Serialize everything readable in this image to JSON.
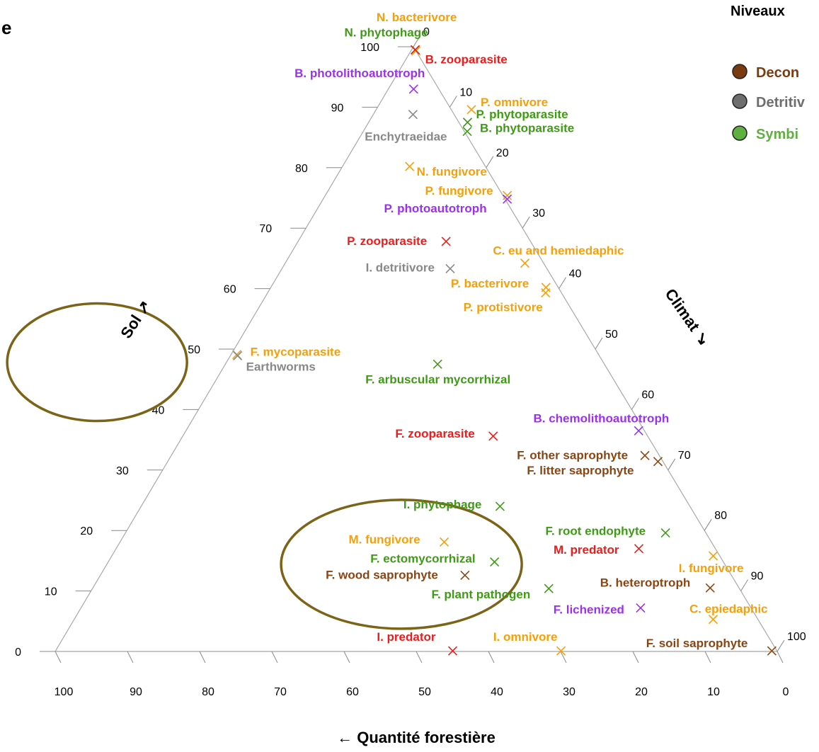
{
  "page_fragment": "e",
  "legend": {
    "title": "Niveaux",
    "items": [
      {
        "label": "Decon",
        "color": "#7a3b10"
      },
      {
        "label": "Detritiv",
        "color": "#6e6e6e"
      },
      {
        "label": "Symbi",
        "color": "#5fb040"
      }
    ]
  },
  "chart_data": {
    "type": "scatter",
    "subtype": "ternary",
    "axes": {
      "bottom": {
        "title": "← Quantité forestière",
        "ticks": [
          "100",
          "90",
          "80",
          "70",
          "60",
          "50",
          "40",
          "30",
          "20",
          "10",
          "0"
        ]
      },
      "left": {
        "title": "Sol ↗",
        "ticks": [
          "0",
          "10",
          "20",
          "30",
          "40",
          "50",
          "60",
          "70",
          "80",
          "90",
          "100"
        ]
      },
      "right": {
        "title": "Climat ↘",
        "ticks": [
          "0",
          "10",
          "20",
          "30",
          "40",
          "50",
          "60",
          "70",
          "80",
          "90",
          "100"
        ]
      }
    },
    "colors": {
      "orange": "#f5a00a",
      "green": "#3f9a16",
      "red": "#ee1c1c",
      "purple": "#9b30f0",
      "grey": "#888888",
      "brown": "#8b4513"
    },
    "points": [
      {
        "label": "N. bacterivore",
        "sol": 99.3,
        "climat": 0.7,
        "color": "orange",
        "la": "middle",
        "ld": [
          1,
          -48
        ]
      },
      {
        "label": "N. phytophage",
        "sol": 99.5,
        "climat": 0.5,
        "color": "green",
        "la": "end",
        "ld": [
          18,
          -25
        ]
      },
      {
        "label": "B. zooparasite",
        "sol": 99.5,
        "climat": 0.5,
        "color": "red",
        "la": "start",
        "ld": [
          14,
          13
        ]
      },
      {
        "label": "B. photolithoautotroph",
        "sol": 93,
        "climat": 3.5,
        "color": "purple",
        "la": "end",
        "ld": [
          16,
          -23
        ]
      },
      {
        "label": "Enchytraeidae",
        "sol": 88.8,
        "climat": 5.5,
        "color": "grey",
        "la": "middle",
        "ld": [
          -10,
          31
        ]
      },
      {
        "label": "P. omnivore",
        "sol": 89.6,
        "climat": 13.2,
        "color": "orange",
        "la": "start",
        "ld": [
          13,
          -11
        ]
      },
      {
        "label": "P. phytoparasite",
        "sol": 87.5,
        "climat": 13.7,
        "color": "green",
        "la": "start",
        "ld": [
          12,
          -12
        ]
      },
      {
        "label": "B. phytoparasite",
        "sol": 86.0,
        "climat": 14.4,
        "color": "green",
        "la": "start",
        "ld": [
          18,
          -5
        ]
      },
      {
        "label": "N. fungivore",
        "sol": 80.2,
        "climat": 9.3,
        "color": "orange",
        "la": "start",
        "ld": [
          10,
          7
        ]
      },
      {
        "label": "P. fungivore",
        "sol": 75.4,
        "climat": 25.2,
        "color": "orange",
        "la": "end",
        "ld": [
          -20,
          -7
        ]
      },
      {
        "label": "P. photoautotroph",
        "sol": 74.8,
        "climat": 25.5,
        "color": "purple",
        "la": "end",
        "ld": [
          -29,
          13
        ]
      },
      {
        "label": "P. zooparasite",
        "sol": 67.8,
        "climat": 20.5,
        "color": "red",
        "la": "end",
        "ld": [
          -27,
          -1
        ]
      },
      {
        "label": "C. eu and hemiedaphic",
        "sol": 64.2,
        "climat": 33.2,
        "color": "orange",
        "la": "end",
        "ld": [
          140,
          -18
        ]
      },
      {
        "label": "I. detritivore",
        "sol": 63.3,
        "climat": 23.3,
        "color": "grey",
        "la": "end",
        "ld": [
          -22,
          -2
        ]
      },
      {
        "label": "P. bacterivore",
        "sol": 60.2,
        "climat": 38.1,
        "color": "orange",
        "la": "end",
        "ld": [
          -24,
          -6
        ]
      },
      {
        "label": "P. protistivore",
        "sol": 59.3,
        "climat": 38.5,
        "color": "orange",
        "la": "end",
        "ld": [
          -4,
          20
        ]
      },
      {
        "label": "F. mycoparasite",
        "sol": 49.1,
        "climat": 0.8,
        "color": "orange",
        "la": "start",
        "ld": [
          19,
          -4
        ]
      },
      {
        "label": "Earthworms",
        "sol": 48.9,
        "climat": 1.0,
        "color": "grey",
        "la": "start",
        "ld": [
          12,
          15
        ]
      },
      {
        "label": "F. arbuscular mycorrhizal",
        "sol": 47.5,
        "climat": 29.4,
        "color": "green",
        "la": "start",
        "ld": [
          -102,
          21
        ]
      },
      {
        "label": "B. chemolithoautotroph",
        "sol": 36.5,
        "climat": 62.7,
        "color": "purple",
        "la": "end",
        "ld": [
          43,
          -18
        ]
      },
      {
        "label": "F. zooparasite",
        "sol": 35.6,
        "climat": 43.0,
        "color": "red",
        "la": "end",
        "ld": [
          -26,
          -4
        ]
      },
      {
        "label": "F. other saprophyte",
        "sol": 32.4,
        "climat": 65.6,
        "color": "brown",
        "la": "end",
        "ld": [
          -24,
          -1
        ]
      },
      {
        "label": "F. litter saprophyte",
        "sol": 31.4,
        "climat": 67.9,
        "color": "brown",
        "la": "end",
        "ld": [
          -34,
          12
        ]
      },
      {
        "label": "I. phytophage",
        "sol": 24.0,
        "climat": 49.7,
        "color": "green",
        "la": "end",
        "ld": [
          -26,
          -3
        ]
      },
      {
        "label": "F. root endophyte",
        "sol": 19.6,
        "climat": 74.8,
        "color": "green",
        "la": "end",
        "ld": [
          -28,
          -3
        ]
      },
      {
        "label": "M. fungivore",
        "sol": 18.1,
        "climat": 44.9,
        "color": "orange",
        "la": "end",
        "ld": [
          -34,
          -4
        ]
      },
      {
        "label": "M. predator",
        "sol": 17.0,
        "climat": 72.4,
        "color": "red",
        "la": "end",
        "ld": [
          -28,
          1
        ]
      },
      {
        "label": "I. fungivore",
        "sol": 15.8,
        "climat": 83.3,
        "color": "orange",
        "la": "middle",
        "ld": [
          -3,
          17
        ]
      },
      {
        "label": "F. ectomycorrhizal",
        "sol": 14.8,
        "climat": 53.5,
        "color": "green",
        "la": "end",
        "ld": [
          -27,
          -5
        ]
      },
      {
        "label": "F. wood saprophyte",
        "sol": 12.6,
        "climat": 50.5,
        "color": "brown",
        "la": "end",
        "ld": [
          -38,
          -1
        ]
      },
      {
        "label": "F. plant pathogen",
        "sol": 10.4,
        "climat": 63.2,
        "color": "green",
        "la": "end",
        "ld": [
          -26,
          8
        ]
      },
      {
        "label": "B. heteroptroph",
        "sol": 10.5,
        "climat": 85.5,
        "color": "brown",
        "la": "end",
        "ld": [
          -28,
          -8
        ]
      },
      {
        "label": "F. lichenized",
        "sol": 7.2,
        "climat": 77.5,
        "color": "purple",
        "la": "end",
        "ld": [
          -23,
          2
        ]
      },
      {
        "label": "C. epiedaphic",
        "sol": 5.3,
        "climat": 88.5,
        "color": "orange",
        "la": "end",
        "ld": [
          77,
          -15
        ]
      },
      {
        "label": "I. predator",
        "sol": 0.1,
        "climat": 55.0,
        "color": "red",
        "la": "end",
        "ld": [
          -24,
          -20
        ]
      },
      {
        "label": "I. omnivore",
        "sol": 0.1,
        "climat": 70.0,
        "color": "orange",
        "la": "end",
        "ld": [
          -5,
          -20
        ]
      },
      {
        "label": "F. soil saprophyte",
        "sol": 0.1,
        "climat": 99.2,
        "color": "brown",
        "la": "end",
        "ld": [
          -34,
          -11
        ]
      }
    ],
    "ellipses": [
      {
        "cx_data": "sol≈49, quantité≈72",
        "color": "#7b6418"
      },
      {
        "cx_data": "sol≈15, quantité≈44",
        "color": "#7b6418"
      }
    ]
  }
}
